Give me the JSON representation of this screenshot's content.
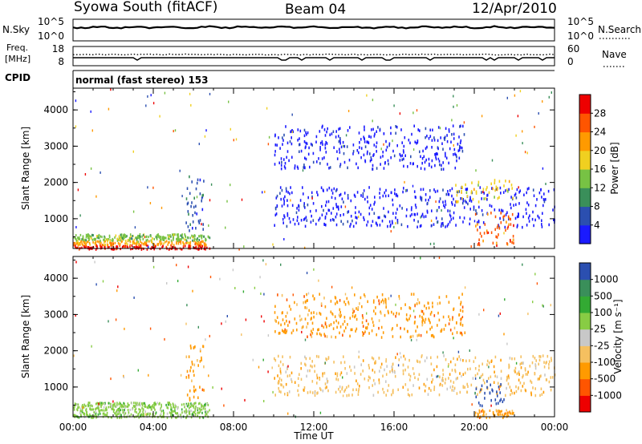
{
  "header": {
    "station": "Syowa South (fitACF)",
    "beam": "Beam 04",
    "date": "12/Apr/2010"
  },
  "top_panels": {
    "noise": {
      "left_label": "N.Sky",
      "right_label": "N.Search",
      "left_ticks": [
        "10^5",
        "10^0"
      ],
      "right_ticks": [
        "10^5",
        "10^0"
      ]
    },
    "freq": {
      "left_label_1": "Freq.",
      "left_label_2": "[MHz]",
      "right_label": "Nave",
      "left_ticks": [
        "18",
        "8"
      ],
      "right_ticks": [
        "60",
        "0"
      ]
    },
    "cpid_label": "CPID",
    "cpid_text": "normal (fast stereo) 153"
  },
  "x_axis": {
    "ticks": [
      "00:00",
      "04:00",
      "08:00",
      "12:00",
      "16:00",
      "20:00",
      "00:00"
    ],
    "label": "Time UT"
  },
  "colors": {
    "power": [
      "#1a1aff",
      "#2b4fb0",
      "#3a8f5a",
      "#77c244",
      "#f0d020",
      "#ff9a00",
      "#ff5500",
      "#ee0000"
    ],
    "velocity": [
      "#ee0000",
      "#ff5500",
      "#ff9a00",
      "#f5c060",
      "#c8c8c8",
      "#88cc44",
      "#33aa33",
      "#3a8f5a",
      "#2b4fb0"
    ]
  },
  "chart_data": [
    {
      "type": "heatmap",
      "name": "power",
      "ylabel": "Slant Range [km]",
      "yticks": [
        "1000",
        "2000",
        "3000",
        "4000"
      ],
      "ylim": [
        180,
        4600
      ],
      "xlim_hours": [
        0,
        24
      ],
      "colorbar_label": "Power [dB]",
      "colorbar_ticks": [
        "4",
        "8",
        "12",
        "16",
        "20",
        "24",
        "28"
      ],
      "colorbar_range": [
        0,
        30
      ],
      "regions": [
        {
          "t": [
            0,
            6.8
          ],
          "r": [
            180,
            300
          ],
          "level": 7
        },
        {
          "t": [
            0,
            6.8
          ],
          "r": [
            300,
            420
          ],
          "level": 5
        },
        {
          "t": [
            0,
            6.8
          ],
          "r": [
            420,
            600
          ],
          "level": 3
        },
        {
          "t": [
            5.6,
            6.5
          ],
          "r": [
            600,
            2200
          ],
          "level": 1
        },
        {
          "t": [
            10.0,
            19.5
          ],
          "r": [
            2400,
            3600
          ],
          "level": 0
        },
        {
          "t": [
            10.0,
            24.0
          ],
          "r": [
            800,
            1900
          ],
          "level": 0
        },
        {
          "t": [
            20.0,
            22.0
          ],
          "r": [
            300,
            1200
          ],
          "level": 6
        },
        {
          "t": [
            19.0,
            22.0
          ],
          "r": [
            1500,
            2100
          ],
          "level": 4
        }
      ]
    },
    {
      "type": "heatmap",
      "name": "velocity",
      "ylabel": "Slant Range [km]",
      "yticks": [
        "1000",
        "2000",
        "3000",
        "4000"
      ],
      "ylim": [
        180,
        4600
      ],
      "xlim_hours": [
        0,
        24
      ],
      "colorbar_label": "Velocity [m s⁻¹]",
      "colorbar_ticks": [
        "-1000",
        "-500",
        "-100",
        "-25",
        "25",
        "100",
        "500",
        "1000"
      ],
      "colorbar_range": [
        -1500,
        1500
      ],
      "regions": [
        {
          "t": [
            0,
            6.8
          ],
          "r": [
            180,
            600
          ],
          "level": 5
        },
        {
          "t": [
            5.6,
            6.5
          ],
          "r": [
            600,
            2200
          ],
          "level": 2
        },
        {
          "t": [
            10.0,
            19.5
          ],
          "r": [
            2400,
            3600
          ],
          "level": 2
        },
        {
          "t": [
            10.0,
            24.0
          ],
          "r": [
            800,
            1900
          ],
          "level": 3
        },
        {
          "t": [
            20.0,
            22.0
          ],
          "r": [
            180,
            400
          ],
          "level": 2
        },
        {
          "t": [
            20.0,
            21.5
          ],
          "r": [
            500,
            1200
          ],
          "level": 8
        }
      ]
    }
  ]
}
